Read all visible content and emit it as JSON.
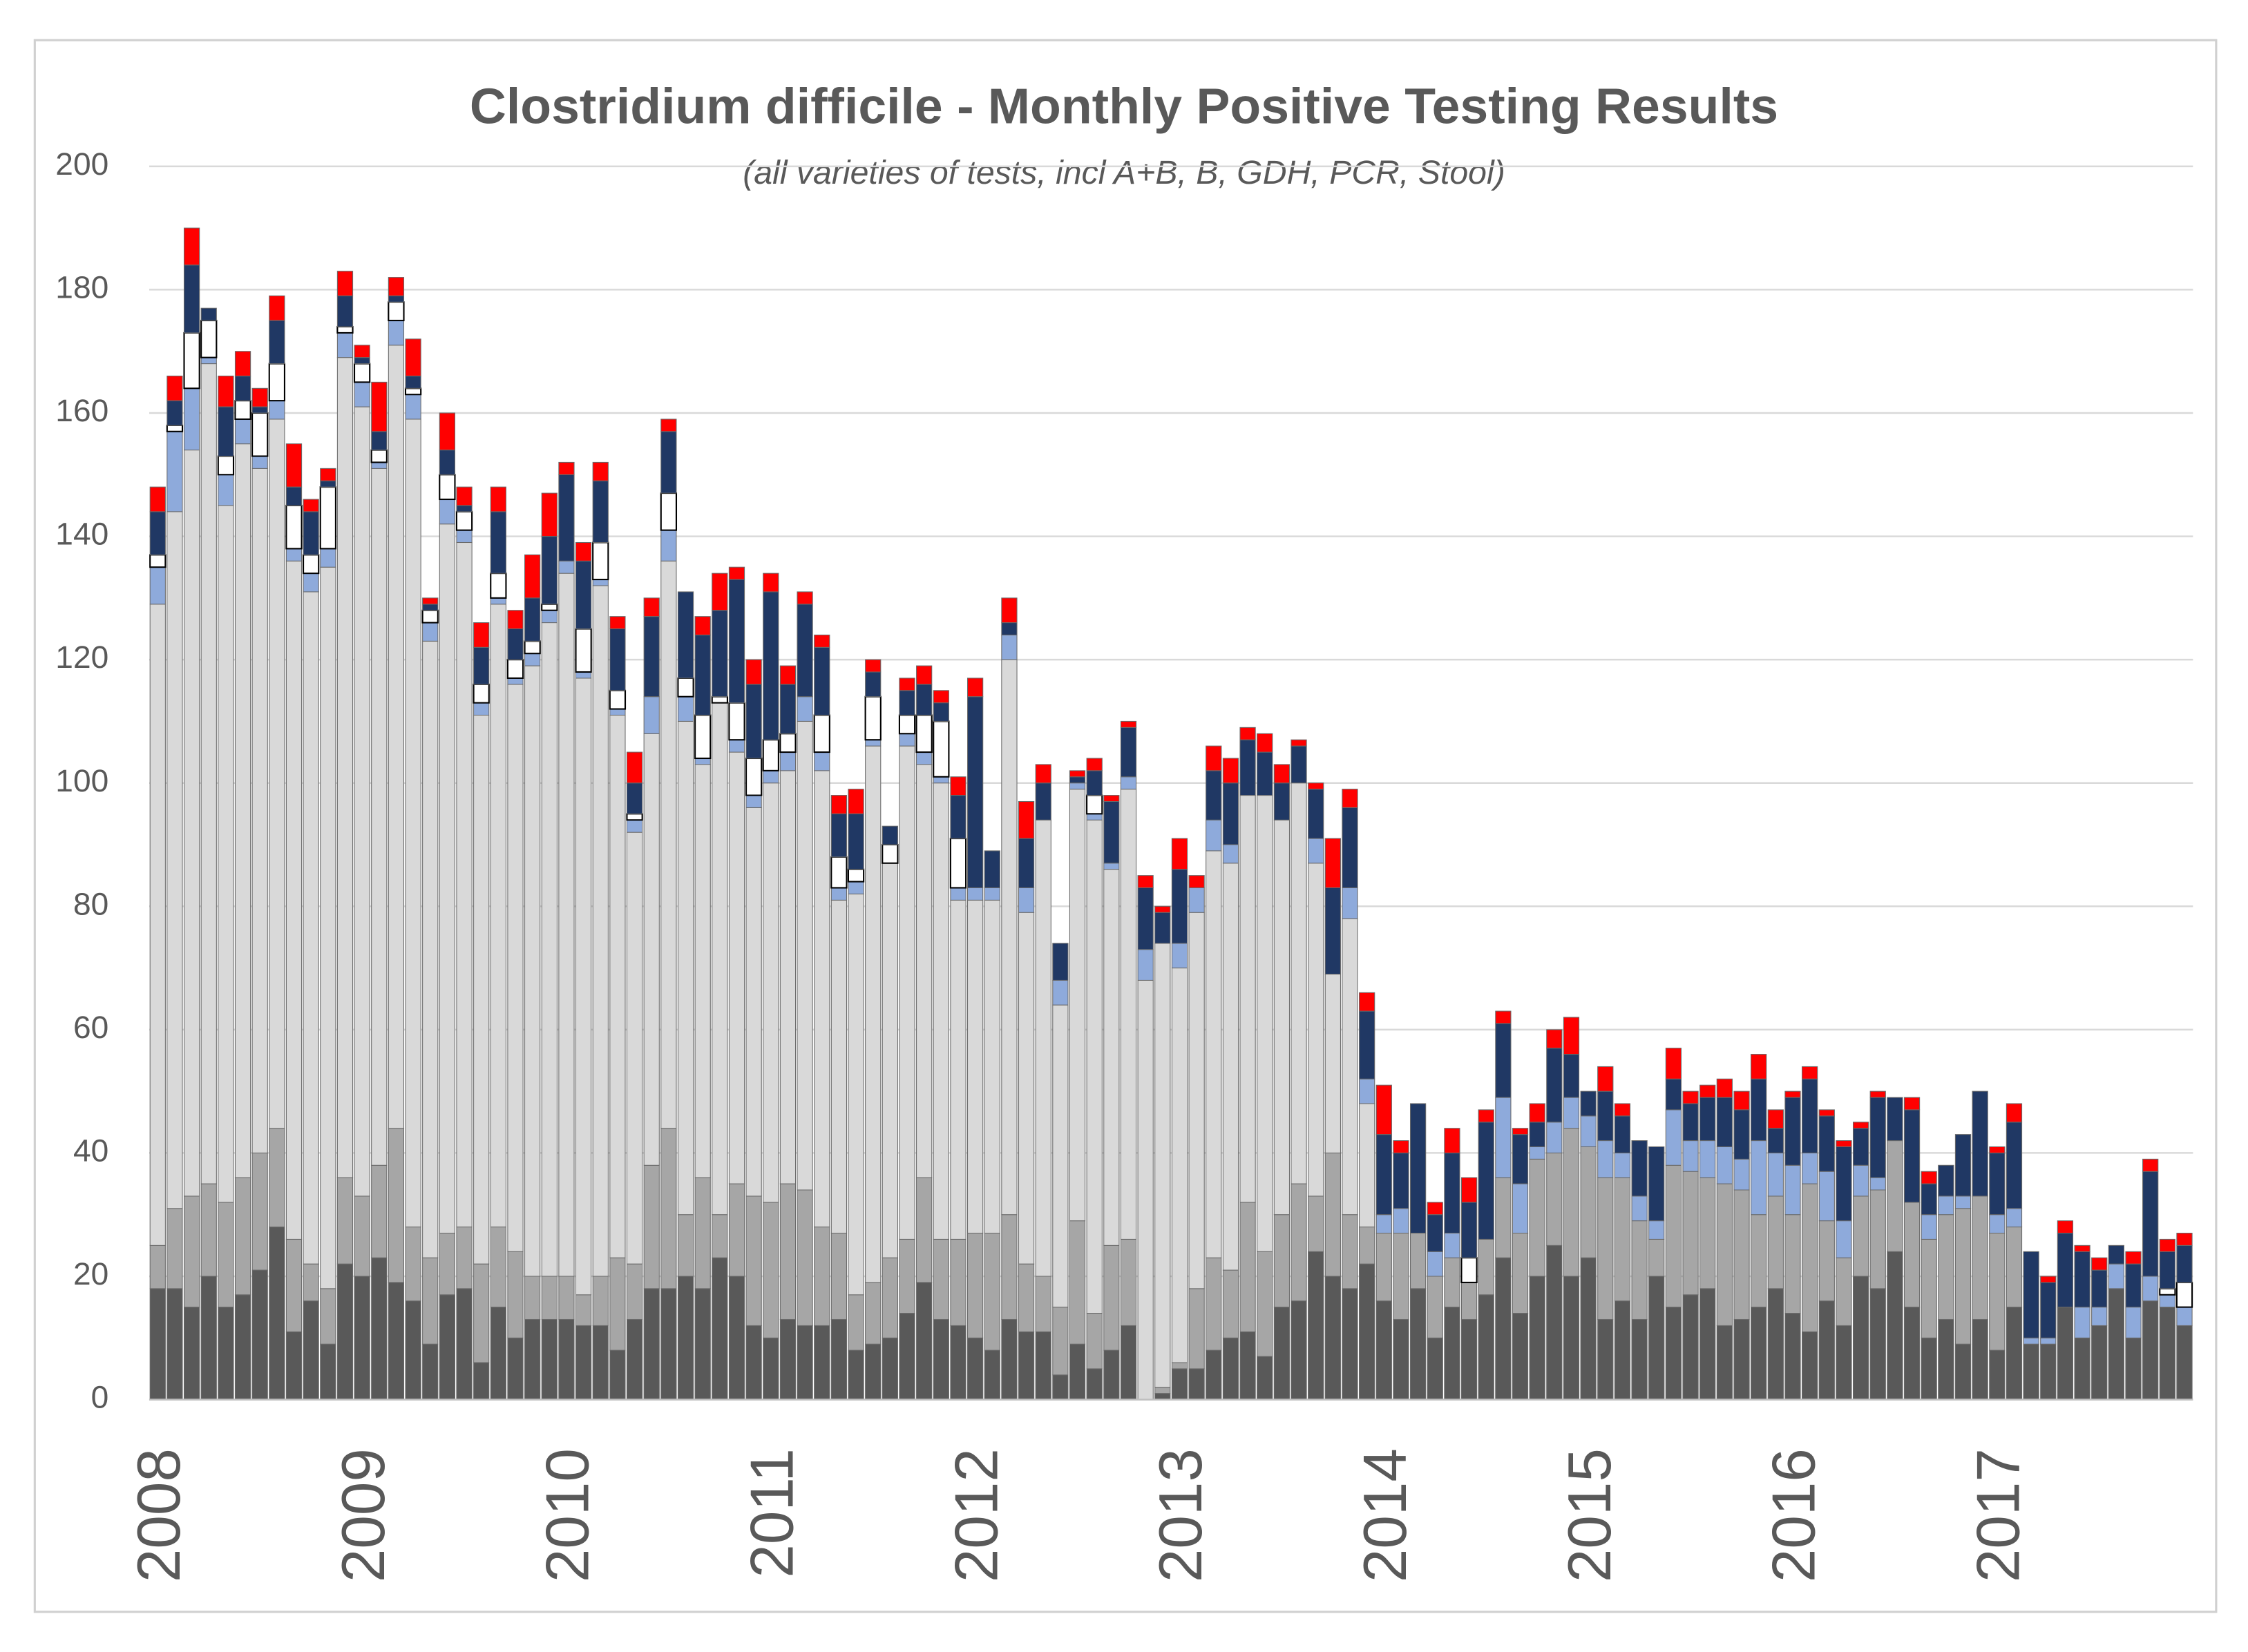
{
  "chart_data": {
    "type": "bar",
    "stacked": true,
    "title": "Clostridium difficile - Monthly Positive Testing Results",
    "subtitle": "(all varieties of tests, incl A+B, B, GDH, PCR, Stool)",
    "categories": [
      "2008",
      null,
      null,
      null,
      null,
      null,
      null,
      null,
      null,
      null,
      null,
      null,
      "2009",
      null,
      null,
      null,
      null,
      null,
      null,
      null,
      null,
      null,
      null,
      null,
      "2010",
      null,
      null,
      null,
      null,
      null,
      null,
      null,
      null,
      null,
      null,
      null,
      "2011",
      null,
      null,
      null,
      null,
      null,
      null,
      null,
      null,
      null,
      null,
      null,
      "2012",
      null,
      null,
      null,
      null,
      null,
      null,
      null,
      null,
      null,
      null,
      null,
      "2013",
      null,
      null,
      null,
      null,
      null,
      null,
      null,
      null,
      null,
      null,
      null,
      "2014",
      null,
      null,
      null,
      null,
      null,
      null,
      null,
      null,
      null,
      null,
      null,
      "2015",
      null,
      null,
      null,
      null,
      null,
      null,
      null,
      null,
      null,
      null,
      null,
      "2016",
      null,
      null,
      null,
      null,
      null,
      null,
      null,
      null,
      null,
      null,
      null,
      "2017",
      null,
      null,
      null,
      null,
      null,
      null,
      null,
      null,
      null,
      null,
      null
    ],
    "series": [
      {
        "color": "#595959",
        "values": [
          18,
          18,
          15,
          20,
          15,
          17,
          21,
          28,
          11,
          16,
          9,
          22,
          20,
          23,
          19,
          16,
          9,
          17,
          18,
          6,
          15,
          10,
          13,
          13,
          13,
          12,
          12,
          8,
          13,
          18,
          18,
          20,
          18,
          23,
          20,
          12,
          10,
          13,
          12,
          12,
          13,
          8,
          9,
          10,
          14,
          19,
          13,
          12,
          10,
          8,
          13,
          11,
          11,
          4,
          9,
          5,
          8,
          12,
          0,
          1,
          5,
          5,
          8,
          10,
          11,
          7,
          15,
          16,
          24,
          20,
          18,
          22,
          16,
          13,
          18,
          10,
          15,
          13,
          17,
          23,
          14,
          20,
          25,
          20,
          23,
          13,
          16,
          13,
          20,
          15,
          17,
          18,
          12,
          13,
          15,
          18,
          14,
          11,
          16,
          12,
          20,
          18,
          24,
          15,
          10,
          13,
          9,
          13,
          8,
          15,
          9,
          9,
          15,
          10,
          12,
          18,
          10,
          16,
          15,
          12
        ]
      },
      {
        "color": "#a6a6a6",
        "values": [
          7,
          13,
          18,
          15,
          17,
          19,
          19,
          16,
          15,
          6,
          9,
          14,
          13,
          15,
          25,
          12,
          14,
          10,
          10,
          16,
          13,
          14,
          7,
          7,
          7,
          5,
          8,
          15,
          9,
          20,
          26,
          10,
          18,
          7,
          15,
          21,
          22,
          22,
          22,
          16,
          14,
          9,
          10,
          13,
          12,
          17,
          13,
          14,
          17,
          19,
          17,
          11,
          9,
          11,
          20,
          9,
          17,
          14,
          0,
          1,
          1,
          13,
          15,
          11,
          21,
          17,
          15,
          19,
          9,
          20,
          12,
          6,
          11,
          14,
          9,
          10,
          8,
          6,
          9,
          13,
          13,
          19,
          15,
          24,
          18,
          23,
          20,
          16,
          6,
          23,
          20,
          18,
          23,
          21,
          15,
          15,
          16,
          24,
          13,
          11,
          13,
          16,
          18,
          17,
          16,
          17,
          22,
          20,
          19,
          13,
          0,
          0,
          0,
          0,
          0,
          0,
          0,
          0,
          0,
          0
        ]
      },
      {
        "color": "#d9d9d9",
        "values": [
          104,
          113,
          121,
          133,
          113,
          119,
          111,
          115,
          110,
          109,
          117,
          133,
          128,
          113,
          127,
          131,
          100,
          115,
          111,
          89,
          101,
          92,
          99,
          106,
          114,
          100,
          112,
          88,
          70,
          70,
          92,
          80,
          67,
          83,
          70,
          63,
          68,
          67,
          76,
          74,
          54,
          65,
          87,
          64,
          80,
          67,
          74,
          55,
          54,
          54,
          90,
          57,
          74,
          49,
          70,
          80,
          61,
          73,
          68,
          72,
          64,
          61,
          66,
          66,
          66,
          74,
          64,
          65,
          54,
          29,
          48,
          20,
          0,
          0,
          0,
          0,
          0,
          0,
          0,
          0,
          0,
          0,
          0,
          0,
          0,
          0,
          0,
          0,
          0,
          0,
          0,
          0,
          0,
          0,
          0,
          0,
          0,
          0,
          0,
          0,
          0,
          0,
          0,
          0,
          0,
          0,
          0,
          0,
          0,
          0,
          0,
          0,
          0,
          0,
          0,
          0,
          0,
          0,
          0,
          0
        ]
      },
      {
        "color": "#8eaadb",
        "values": [
          6,
          13,
          10,
          1,
          5,
          4,
          2,
          3,
          2,
          3,
          3,
          4,
          4,
          1,
          4,
          4,
          3,
          4,
          2,
          2,
          1,
          1,
          2,
          2,
          2,
          1,
          1,
          1,
          2,
          6,
          5,
          4,
          1,
          0,
          2,
          2,
          2,
          3,
          4,
          3,
          2,
          2,
          1,
          0,
          2,
          2,
          1,
          2,
          2,
          2,
          4,
          4,
          0,
          4,
          1,
          1,
          1,
          2,
          5,
          0,
          4,
          4,
          5,
          3,
          0,
          0,
          0,
          0,
          4,
          0,
          5,
          4,
          3,
          4,
          0,
          4,
          4,
          0,
          0,
          13,
          8,
          2,
          5,
          5,
          5,
          6,
          4,
          4,
          3,
          9,
          5,
          6,
          6,
          5,
          12,
          7,
          8,
          5,
          8,
          6,
          5,
          2,
          0,
          0,
          4,
          3,
          2,
          0,
          3,
          3,
          1,
          1,
          0,
          5,
          3,
          4,
          5,
          4,
          2,
          3
        ]
      },
      {
        "color": "#ffffff",
        "values": [
          2,
          1,
          9,
          6,
          3,
          3,
          7,
          6,
          7,
          3,
          10,
          1,
          3,
          2,
          3,
          1,
          2,
          4,
          3,
          3,
          4,
          3,
          2,
          1,
          0,
          7,
          6,
          3,
          1,
          0,
          6,
          3,
          7,
          1,
          6,
          6,
          5,
          3,
          0,
          6,
          5,
          2,
          7,
          3,
          3,
          6,
          9,
          8,
          0,
          0,
          0,
          0,
          0,
          0,
          0,
          3,
          0,
          0,
          0,
          0,
          0,
          0,
          0,
          0,
          0,
          0,
          0,
          0,
          0,
          0,
          0,
          0,
          0,
          0,
          0,
          0,
          0,
          4,
          0,
          0,
          0,
          0,
          0,
          0,
          0,
          0,
          0,
          0,
          0,
          0,
          0,
          0,
          0,
          0,
          0,
          0,
          0,
          0,
          0,
          0,
          0,
          0,
          0,
          0,
          0,
          0,
          0,
          0,
          0,
          0,
          0,
          0,
          0,
          0,
          0,
          0,
          0,
          0,
          1,
          4
        ]
      },
      {
        "color": "#203864",
        "values": [
          7,
          4,
          11,
          2,
          8,
          4,
          1,
          7,
          3,
          7,
          1,
          5,
          1,
          3,
          1,
          2,
          1,
          4,
          1,
          6,
          10,
          5,
          7,
          11,
          14,
          11,
          10,
          10,
          5,
          13,
          10,
          14,
          13,
          14,
          20,
          12,
          24,
          8,
          15,
          11,
          7,
          9,
          4,
          3,
          4,
          5,
          3,
          7,
          31,
          6,
          2,
          8,
          6,
          6,
          1,
          4,
          10,
          8,
          10,
          5,
          12,
          0,
          8,
          10,
          9,
          7,
          6,
          6,
          8,
          14,
          13,
          11,
          13,
          9,
          21,
          6,
          13,
          9,
          19,
          12,
          8,
          4,
          12,
          7,
          4,
          8,
          6,
          9,
          12,
          5,
          6,
          7,
          8,
          8,
          10,
          4,
          11,
          12,
          9,
          12,
          6,
          13,
          7,
          15,
          5,
          5,
          10,
          17,
          10,
          14,
          14,
          9,
          12,
          9,
          6,
          3,
          7,
          17,
          6,
          6
        ]
      },
      {
        "color": "#ff0000",
        "values": [
          4,
          4,
          6,
          0,
          5,
          4,
          3,
          4,
          7,
          2,
          2,
          4,
          2,
          8,
          3,
          6,
          1,
          6,
          3,
          4,
          4,
          3,
          7,
          7,
          2,
          3,
          3,
          2,
          5,
          3,
          2,
          0,
          3,
          6,
          2,
          4,
          3,
          3,
          2,
          2,
          3,
          4,
          2,
          0,
          2,
          3,
          2,
          3,
          3,
          0,
          4,
          6,
          3,
          0,
          1,
          2,
          1,
          1,
          2,
          1,
          5,
          2,
          4,
          4,
          2,
          3,
          3,
          1,
          1,
          8,
          3,
          3,
          8,
          2,
          0,
          2,
          4,
          4,
          2,
          2,
          1,
          3,
          3,
          6,
          0,
          4,
          2,
          0,
          0,
          5,
          2,
          2,
          3,
          3,
          4,
          3,
          1,
          2,
          1,
          1,
          1,
          1,
          0,
          2,
          2,
          0,
          0,
          0,
          1,
          3,
          0,
          1,
          2,
          1,
          2,
          0,
          2,
          2,
          2,
          2
        ]
      }
    ],
    "ylim": [
      0,
      200
    ],
    "yticks": [
      0,
      20,
      40,
      60,
      80,
      100,
      120,
      140,
      160,
      180,
      200
    ],
    "grid": true
  }
}
